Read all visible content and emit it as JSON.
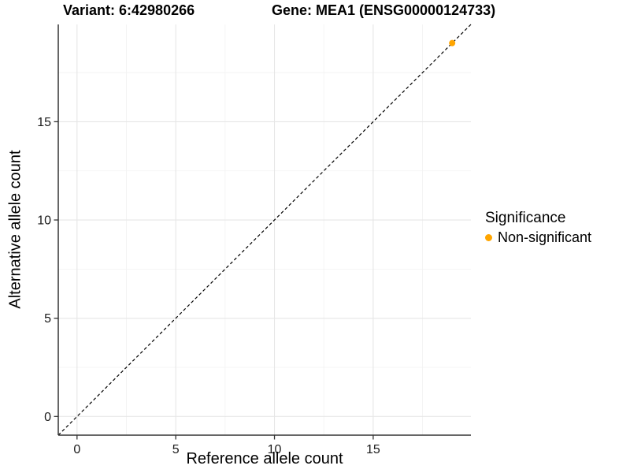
{
  "header": {
    "title_variant": "Variant: 6:42980266",
    "title_gene": "Gene: MEA1 (ENSG00000124733)"
  },
  "chart_data": {
    "type": "scatter",
    "xlabel": "Reference allele count",
    "ylabel": "Alternative allele count",
    "xlim": [
      -0.95,
      19.95
    ],
    "ylim": [
      -0.95,
      19.95
    ],
    "xticks": [
      0,
      5,
      10,
      15
    ],
    "yticks": [
      0,
      5,
      10,
      15
    ],
    "xticks_minor": [
      2.5,
      7.5,
      12.5,
      17.5
    ],
    "yticks_minor": [
      2.5,
      7.5,
      12.5,
      17.5
    ],
    "grid": true,
    "series": [
      {
        "name": "Non-significant",
        "color": "#FFA500",
        "points": [
          [
            19,
            19
          ]
        ]
      }
    ],
    "reference_line": {
      "slope": 1,
      "intercept": 0,
      "style": "dashed",
      "color": "#000000"
    },
    "legend": {
      "title": "Significance",
      "position": "right",
      "items": [
        {
          "label": "Non-significant",
          "color": "#FFA500"
        }
      ]
    }
  },
  "colors": {
    "background": "#FFFFFF",
    "accent": "#FFA500",
    "axis_line": "#333333",
    "tick_text": "#1A1A1A",
    "grid_major": "#E6E6E6",
    "grid_minor": "#F2F2F2"
  }
}
